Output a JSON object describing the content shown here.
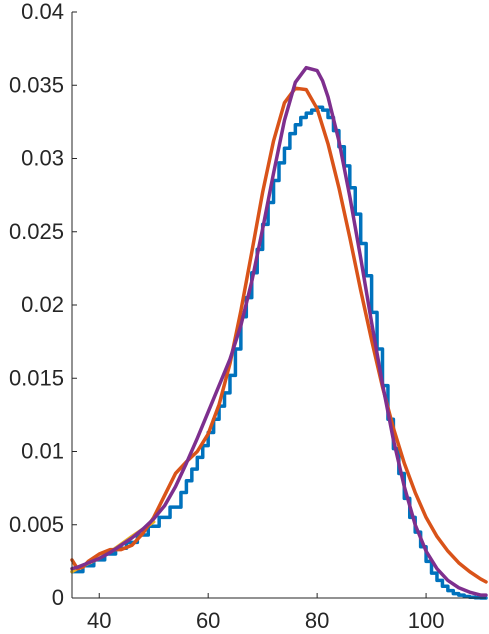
{
  "chart_data": {
    "type": "line",
    "title": "",
    "xlabel": "",
    "ylabel": "",
    "xlim": [
      35,
      111
    ],
    "ylim": [
      0,
      0.04
    ],
    "grid": false,
    "legend": "none",
    "x_ticks": [
      {
        "value": 40,
        "label": "40"
      },
      {
        "value": 60,
        "label": "60"
      },
      {
        "value": 80,
        "label": "80"
      },
      {
        "value": 100,
        "label": "100"
      }
    ],
    "y_ticks": [
      {
        "value": 0,
        "label": "0"
      },
      {
        "value": 0.005,
        "label": "0.005"
      },
      {
        "value": 0.01,
        "label": "0.01"
      },
      {
        "value": 0.015,
        "label": "0.015"
      },
      {
        "value": 0.02,
        "label": "0.02"
      },
      {
        "value": 0.025,
        "label": "0.025"
      },
      {
        "value": 0.03,
        "label": "0.03"
      },
      {
        "value": 0.035,
        "label": "0.035"
      },
      {
        "value": 0.04,
        "label": "0.04"
      }
    ],
    "series": [
      {
        "kind": "stairs",
        "color": "#0072BD",
        "x": [
          35,
          37,
          39,
          41,
          43,
          45,
          47,
          49,
          51,
          53,
          55,
          56,
          57,
          58,
          59,
          60,
          61,
          62,
          63,
          64,
          65,
          66,
          67,
          68,
          69,
          70,
          71,
          72,
          73,
          74,
          75,
          76,
          77,
          78,
          79,
          80,
          81,
          82,
          83,
          84,
          85,
          86,
          87,
          88,
          89,
          90,
          91,
          92,
          93,
          94,
          95,
          96,
          97,
          98,
          99,
          100,
          101,
          102,
          103,
          104,
          105,
          106,
          107,
          108,
          109,
          110,
          111
        ],
        "y": [
          0.0018,
          0.0022,
          0.0026,
          0.003,
          0.0034,
          0.0038,
          0.0043,
          0.0049,
          0.0055,
          0.0062,
          0.0072,
          0.008,
          0.0088,
          0.0096,
          0.0104,
          0.0113,
          0.0122,
          0.0131,
          0.014,
          0.0152,
          0.017,
          0.0192,
          0.0205,
          0.0222,
          0.0238,
          0.0255,
          0.027,
          0.0285,
          0.0297,
          0.0307,
          0.0317,
          0.0323,
          0.0328,
          0.0331,
          0.0333,
          0.0335,
          0.0333,
          0.0328,
          0.0319,
          0.0308,
          0.0295,
          0.028,
          0.0262,
          0.0242,
          0.022,
          0.0195,
          0.017,
          0.0145,
          0.0122,
          0.0102,
          0.0085,
          0.0068,
          0.0055,
          0.0045,
          0.0035,
          0.0025,
          0.0017,
          0.0012,
          0.0008,
          0.0005,
          0.0003,
          0.0002,
          0.0001,
          5e-05,
          2e-05,
          0.0,
          0.0
        ]
      },
      {
        "kind": "line",
        "color": "#EDB120",
        "x": [
          35,
          37,
          40,
          43,
          46,
          50
        ],
        "y": [
          0.0018,
          0.0022,
          0.0027,
          0.0034,
          0.0042,
          0.0052
        ]
      },
      {
        "kind": "line",
        "color": "#D95319",
        "x": [
          35,
          36,
          37,
          38,
          40,
          42,
          44,
          46,
          48,
          50,
          52,
          54,
          56,
          58,
          60,
          62,
          64,
          66,
          68,
          70,
          72,
          74,
          76,
          78,
          80,
          82,
          84,
          86,
          88,
          90,
          92,
          94,
          96,
          98,
          100,
          102,
          104,
          106,
          108,
          110,
          111
        ],
        "y": [
          0.0026,
          0.002,
          0.0021,
          0.0025,
          0.003,
          0.0033,
          0.0033,
          0.0036,
          0.0044,
          0.0055,
          0.007,
          0.0085,
          0.0093,
          0.01,
          0.0112,
          0.0132,
          0.016,
          0.0196,
          0.0236,
          0.0277,
          0.0312,
          0.0338,
          0.0348,
          0.0347,
          0.0334,
          0.031,
          0.028,
          0.0246,
          0.021,
          0.0176,
          0.0144,
          0.0116,
          0.0092,
          0.0072,
          0.0055,
          0.0042,
          0.0032,
          0.0024,
          0.0018,
          0.0013,
          0.0011
        ]
      },
      {
        "kind": "line",
        "color": "#7E2F8E",
        "x": [
          35,
          36,
          38,
          40,
          42,
          44,
          46,
          48,
          50,
          52,
          54,
          56,
          58,
          60,
          62,
          64,
          66,
          68,
          70,
          72,
          74,
          76,
          78,
          80,
          81,
          82,
          84,
          86,
          88,
          90,
          92,
          94,
          96,
          98,
          100,
          102,
          104,
          106,
          108,
          110,
          111
        ],
        "y": [
          0.002,
          0.0021,
          0.0024,
          0.0027,
          0.0031,
          0.0036,
          0.0041,
          0.0047,
          0.0054,
          0.0063,
          0.0076,
          0.0092,
          0.0109,
          0.0127,
          0.0145,
          0.0163,
          0.0186,
          0.0216,
          0.0252,
          0.029,
          0.0326,
          0.0352,
          0.0362,
          0.036,
          0.0353,
          0.0342,
          0.0312,
          0.0274,
          0.0232,
          0.0188,
          0.0146,
          0.0108,
          0.0076,
          0.005,
          0.0032,
          0.002,
          0.0012,
          0.0007,
          0.0004,
          0.0002,
          0.0002
        ]
      }
    ]
  }
}
